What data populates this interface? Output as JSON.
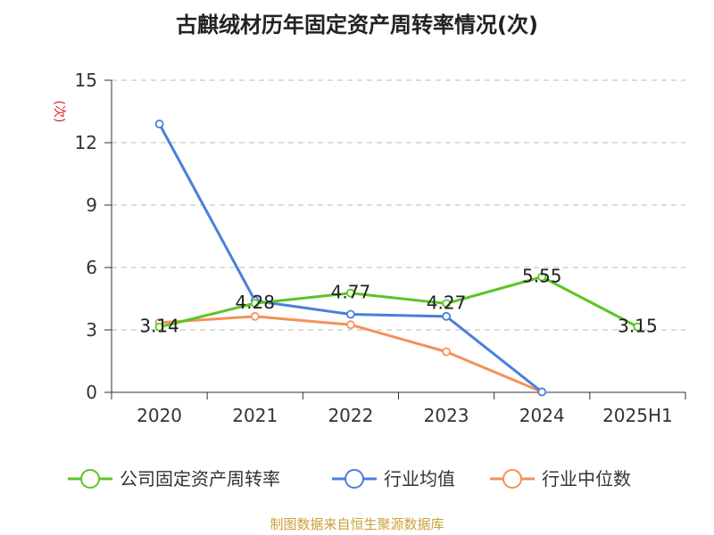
{
  "title": "古麒绒材历年固定资产周转率情况(次)",
  "source": "制图数据来自恒生聚源数据库",
  "chart_data": {
    "type": "line",
    "title": "古麒绒材历年固定资产周转率情况(次)",
    "ylabel": "(次)",
    "xlabel": "",
    "categories": [
      "2020",
      "2021",
      "2022",
      "2023",
      "2024",
      "2025H1"
    ],
    "ylim": [
      0,
      15
    ],
    "yticks": [
      0,
      3,
      6,
      9,
      12,
      15
    ],
    "grid": true,
    "legend_position": "bottom",
    "series": [
      {
        "name": "公司固定资产周转率",
        "color": "#5cc524",
        "values": [
          3.14,
          4.28,
          4.77,
          4.27,
          5.55,
          3.15
        ],
        "labels": [
          "3.14",
          "4.28",
          "4.77",
          "4.27",
          "5.55",
          "3.15"
        ]
      },
      {
        "name": "行业均值",
        "color": "#4a7fdc",
        "values": [
          12.9,
          4.4,
          3.75,
          3.65,
          0.02,
          null
        ]
      },
      {
        "name": "行业中位数",
        "color": "#f4915a",
        "values": [
          3.35,
          3.65,
          3.25,
          1.95,
          0.02,
          null
        ]
      }
    ]
  }
}
